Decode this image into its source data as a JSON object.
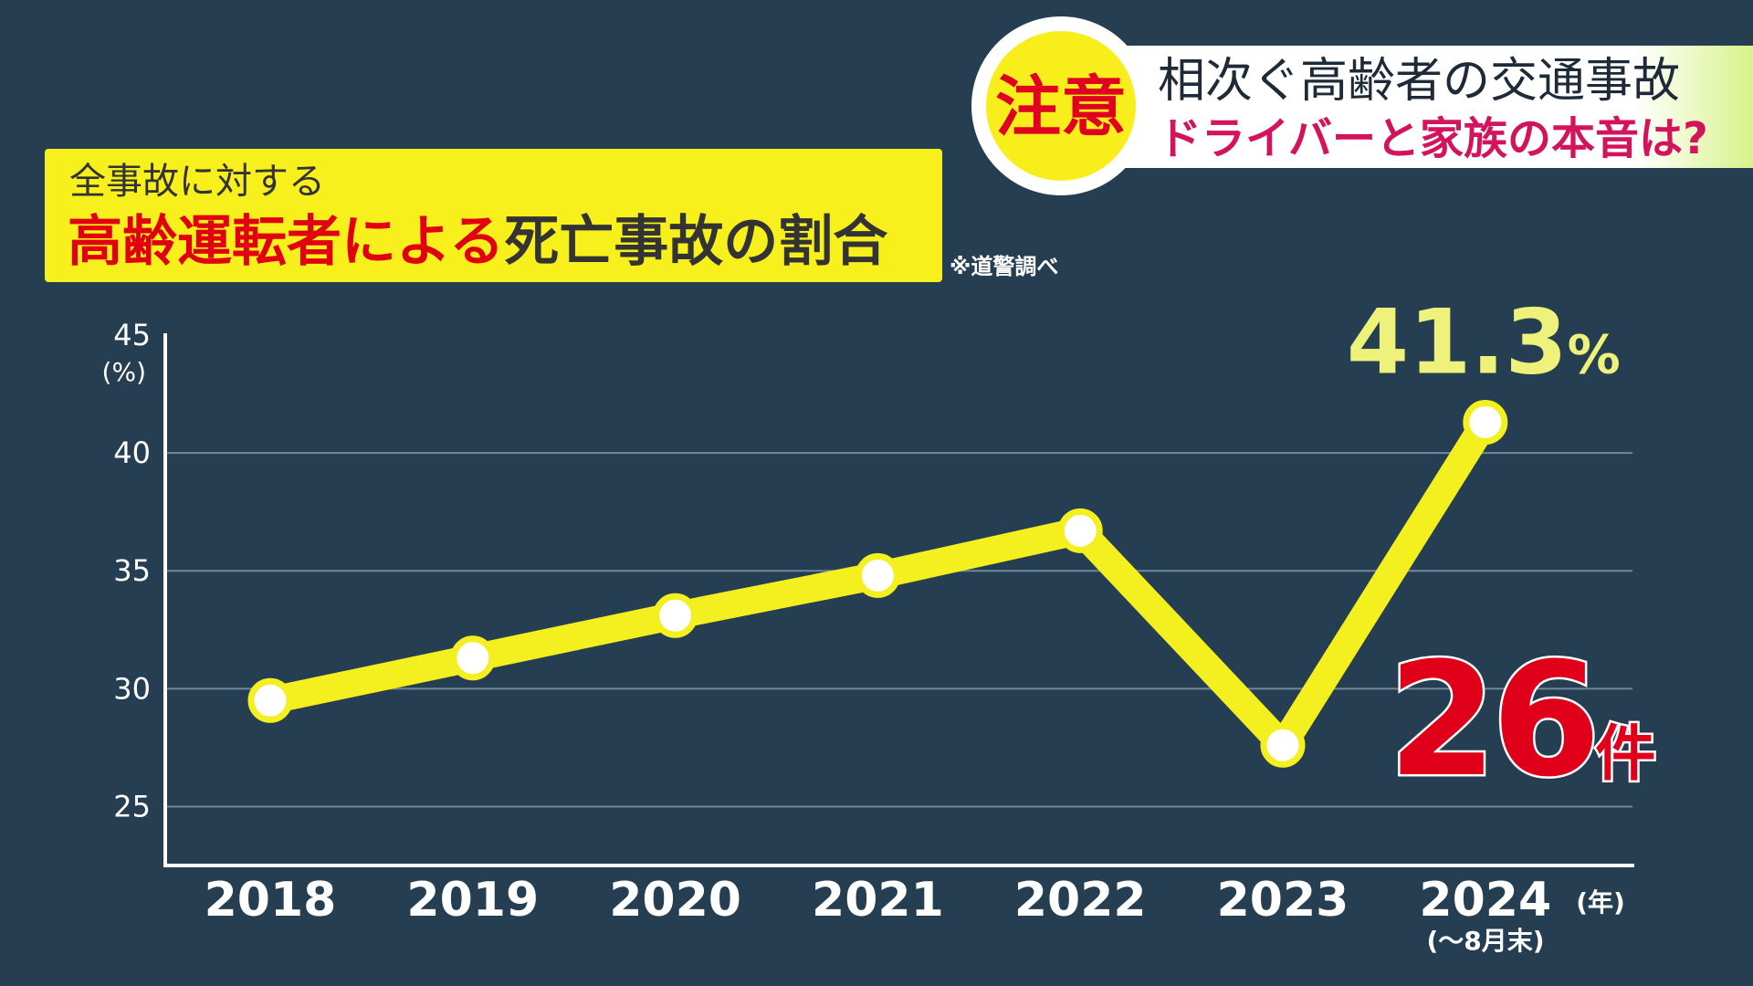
{
  "header": {
    "badge": "注意",
    "headline": "相次ぐ高齢者の交通事故",
    "subheadline": "ドライバーと家族の本音は?"
  },
  "chart_data": {
    "type": "line",
    "title_top": "全事故に対する",
    "title_highlight": "高齢運転者による",
    "title_rest": "死亡事故の割合",
    "source": "※道警調べ",
    "y_unit": "(%)",
    "x_unit": "(年)",
    "x_note": "(～8月末)",
    "categories": [
      "2018",
      "2019",
      "2020",
      "2021",
      "2022",
      "2023",
      "2024"
    ],
    "values": [
      29.5,
      31.3,
      33.1,
      34.8,
      36.7,
      27.6,
      41.3
    ],
    "value_labels": [
      null,
      null,
      null,
      null,
      null,
      null,
      "41.3%"
    ],
    "color": "#f4ef1e",
    "annotation": "26件",
    "ylim": [
      22.5,
      45
    ],
    "yticks": [
      25,
      30,
      35,
      40,
      45
    ],
    "grid": true
  }
}
